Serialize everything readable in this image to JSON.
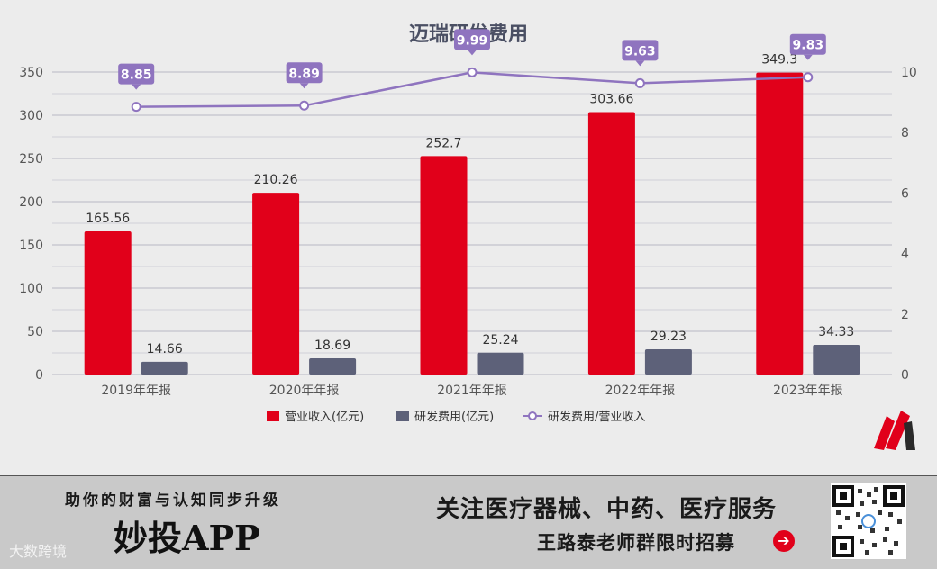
{
  "chart_data": {
    "type": "bar",
    "title": "迈瑞研发费用",
    "categories": [
      "2019年年报",
      "2020年年报",
      "2021年年报",
      "2022年年报",
      "2023年年报"
    ],
    "series": [
      {
        "name": "营业收入(亿元)",
        "kind": "bar",
        "axis": "left",
        "color": "#e1001a",
        "values": [
          165.56,
          210.26,
          252.7,
          303.66,
          349.31
        ],
        "labels": [
          "165.56",
          "210.26",
          "252.7",
          "303.66",
          "349.3"
        ]
      },
      {
        "name": "研发费用(亿元)",
        "kind": "bar",
        "axis": "left",
        "color": "#5d6179",
        "values": [
          14.66,
          18.69,
          25.24,
          29.23,
          34.33
        ],
        "labels": [
          "14.66",
          "18.69",
          "25.24",
          "29.23",
          "34.33"
        ]
      },
      {
        "name": "研发费用/营业收入",
        "kind": "line",
        "axis": "right",
        "color": "#8f74bf",
        "values": [
          8.85,
          8.89,
          9.99,
          9.63,
          9.83
        ],
        "labels": [
          "8.85",
          "8.89",
          "9.99",
          "9.63",
          "9.83"
        ]
      }
    ],
    "y_left": {
      "min": 0,
      "max": 350,
      "ticks": [
        0,
        50,
        100,
        150,
        200,
        250,
        300,
        350
      ]
    },
    "y_right": {
      "min": 0,
      "max": 10,
      "ticks": [
        0,
        2,
        4,
        6,
        8,
        10
      ]
    },
    "legend_position": "bottom",
    "grid": true
  },
  "banner": {
    "slogan": "助你的财富与认知同步升级",
    "app_name": "妙投APP",
    "watermark": "大数跨境",
    "follow": "关注医疗器械、中药、医疗服务",
    "recruit": "王路泰老师群限时招募",
    "arrow": "➔"
  },
  "colors": {
    "revenue": "#e1001a",
    "rnd": "#5d6179",
    "ratio": "#8f74bf",
    "logo_red": "#e1001a"
  }
}
